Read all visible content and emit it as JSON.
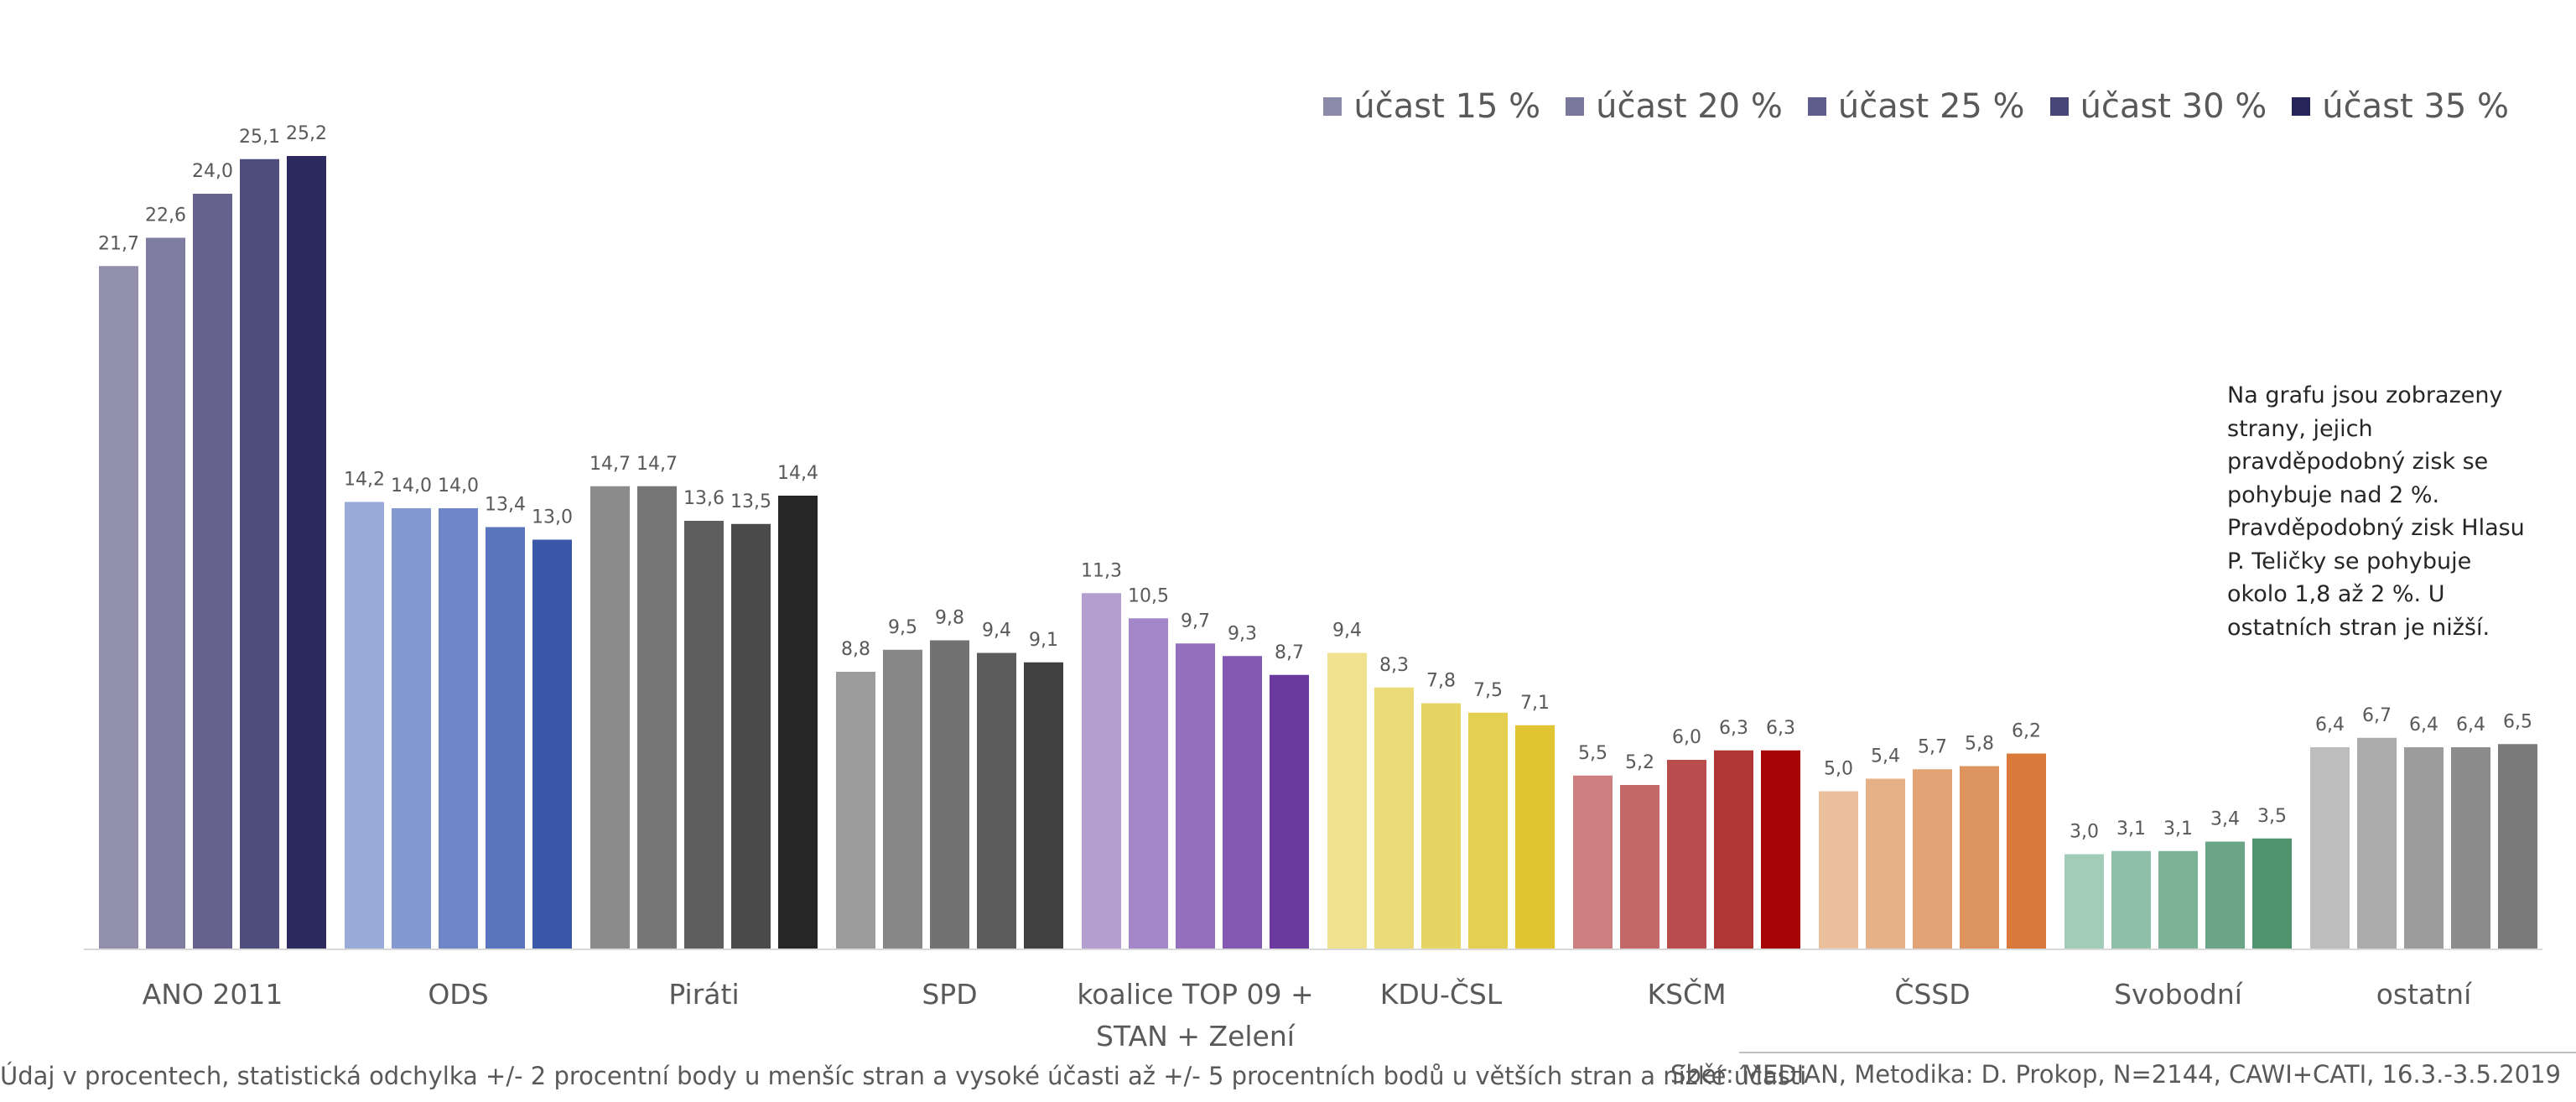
{
  "legend": [
    {
      "label": "účast 15 %",
      "color": "#8b8aa8"
    },
    {
      "label": "účast 20 %",
      "color": "#7a779d"
    },
    {
      "label": "účast 25 %",
      "color": "#5f5d8c"
    },
    {
      "label": "účast 30 %",
      "color": "#474677"
    },
    {
      "label": "účast 35 %",
      "color": "#262559"
    }
  ],
  "note": "Na grafu jsou zobrazeny strany, jejich pravděpodobný zisk se pohybuje nad 2 %. Pravděpodobný zisk Hlasu P. Teličky se pohybuje okolo 1,8 až 2 %. U ostatních stran je nižší.",
  "footer": {
    "left": "Údaj v procentech, statistická odchylka +/- 2 procentní body u menšíc stran a vysoké účasti  až +/- 5 procentních bodů u větších stran a nízké účasti",
    "right": "Sběr: MEDIAN, Metodika: D. Prokop, N=2144, CAWI+CATI, 16.3.-3.5.2019"
  },
  "chart_data": {
    "type": "bar",
    "title": "",
    "xlabel": "",
    "ylabel": "",
    "ylim": [
      0,
      30
    ],
    "grid": false,
    "legend_position": "top-right",
    "series_names": [
      "účast 15 %",
      "účast 20 %",
      "účast 25 %",
      "účast 30 %",
      "účast 35 %"
    ],
    "groups": [
      {
        "category": [
          "ANO 2011"
        ],
        "values": [
          21.7,
          22.6,
          24.0,
          25.1,
          25.2
        ],
        "labels": [
          "21,7",
          "22,6",
          "24,0",
          "25,1",
          "25,2"
        ],
        "colors": [
          "#918fab",
          "#7f7ca1",
          "#65638e",
          "#4f4d7b",
          "#2c2a5e"
        ]
      },
      {
        "category": [
          "ODS"
        ],
        "values": [
          14.2,
          14.0,
          14.0,
          13.4,
          13.0
        ],
        "labels": [
          "14,2",
          "14,0",
          "14,0",
          "13,4",
          "13,0"
        ],
        "colors": [
          "#9aabd9",
          "#8499cf",
          "#6f86c6",
          "#5a74bd",
          "#3b57a8"
        ]
      },
      {
        "category": [
          "Piráti"
        ],
        "values": [
          14.7,
          14.7,
          13.6,
          13.5,
          14.4
        ],
        "labels": [
          "14,7",
          "14,7",
          "13,6",
          "13,5",
          "14,4"
        ],
        "colors": [
          "#8c8c8c",
          "#767676",
          "#5e5e5e",
          "#4a4a4a",
          "#262626"
        ]
      },
      {
        "category": [
          "SPD"
        ],
        "values": [
          8.8,
          9.5,
          9.8,
          9.4,
          9.1
        ],
        "labels": [
          "8,8",
          "9,5",
          "9,8",
          "9,4",
          "9,1"
        ],
        "colors": [
          "#9c9c9c",
          "#878787",
          "#727272",
          "#5c5c5c",
          "#404040"
        ]
      },
      {
        "category": [
          "koalice TOP 09 +",
          "STAN + Zelení"
        ],
        "values": [
          11.3,
          10.5,
          9.7,
          9.3,
          8.7
        ],
        "labels": [
          "11,3",
          "10,5",
          "9,7",
          "9,3",
          "8,7"
        ],
        "colors": [
          "#b59fd1",
          "#a487c8",
          "#936fbd",
          "#8258b1",
          "#6a3a9f"
        ]
      },
      {
        "category": [
          "KDU-ČSL"
        ],
        "values": [
          9.4,
          8.3,
          7.8,
          7.5,
          7.1
        ],
        "labels": [
          "9,4",
          "8,3",
          "7,8",
          "7,5",
          "7,1"
        ],
        "colors": [
          "#f0e28f",
          "#eadb78",
          "#e6d563",
          "#e4cf50",
          "#e0c431"
        ]
      },
      {
        "category": [
          "KSČM"
        ],
        "values": [
          5.5,
          5.2,
          6.0,
          6.3,
          6.3
        ],
        "labels": [
          "5,5",
          "5,2",
          "6,0",
          "6,3",
          "6,3"
        ],
        "colors": [
          "#cd7f7f",
          "#c26868",
          "#b94d4d",
          "#b03636",
          "#a50505"
        ]
      },
      {
        "category": [
          "ČSSD"
        ],
        "values": [
          5.0,
          5.4,
          5.7,
          5.8,
          6.2
        ],
        "labels": [
          "5,0",
          "5,4",
          "5,7",
          "5,8",
          "6,2"
        ],
        "colors": [
          "#e9bf9c",
          "#e6b188",
          "#e2a374",
          "#dd945f",
          "#d97a3a"
        ]
      },
      {
        "category": [
          "Svobodní"
        ],
        "values": [
          3.0,
          3.1,
          3.1,
          3.4,
          3.5
        ],
        "labels": [
          "3,0",
          "3,1",
          "3,1",
          "3,4",
          "3,5"
        ],
        "colors": [
          "#a3ccb8",
          "#8fbfa7",
          "#7db297",
          "#6aa586",
          "#4f946e"
        ]
      },
      {
        "category": [
          "ostatní"
        ],
        "values": [
          6.4,
          6.7,
          6.4,
          6.4,
          6.5
        ],
        "labels": [
          "6,4",
          "6,7",
          "6,4",
          "6,4",
          "6,5"
        ],
        "colors": [
          "#bdbdbd",
          "#acacac",
          "#9c9c9c",
          "#8c8c8c",
          "#7a7a7a"
        ]
      }
    ]
  }
}
